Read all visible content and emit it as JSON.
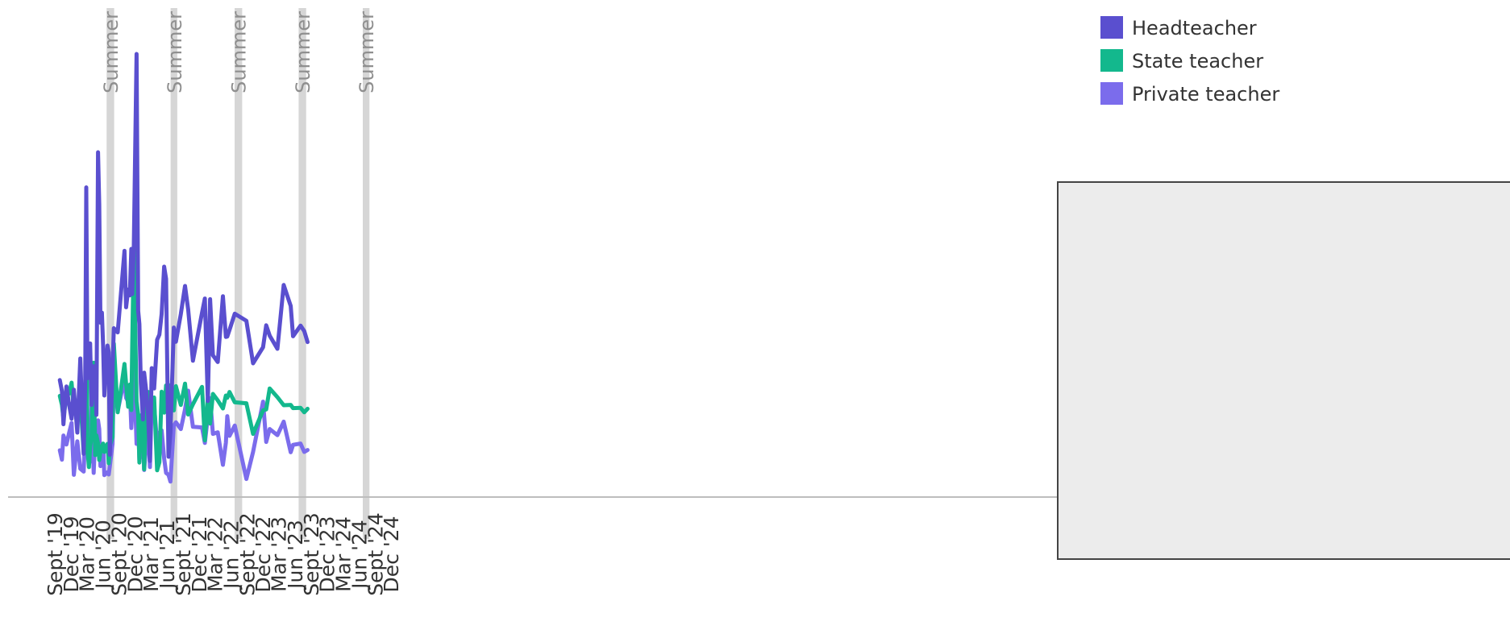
{
  "chart_data": {
    "type": "line",
    "x_start": "2019-09",
    "x_end": "2025-03",
    "xtick_labels": [
      "Sept '19",
      "Dec '19",
      "Mar '20",
      "Jun '20",
      "Sept '20",
      "Dec '20",
      "Mar '21",
      "Jun '21",
      "Sept '21",
      "Dec '21",
      "Mar '22",
      "Jun '22",
      "Sept '22",
      "Dec '22",
      "Mar '23",
      "Jun '23",
      "Sept '23",
      "Dec '23",
      "Mar '24",
      "Jun '24",
      "Sept '24",
      "Dec '24"
    ],
    "ylim": [
      0,
      100
    ],
    "summer_bands": [
      {
        "label": "Summer",
        "start": "2020-07-20",
        "end": "2020-09-01"
      },
      {
        "label": "Summer",
        "start": "2021-07-20",
        "end": "2021-08-27"
      },
      {
        "label": "Summer",
        "start": "2022-07-20",
        "end": "2022-09-01"
      },
      {
        "label": "Summer",
        "start": "2023-07-20",
        "end": "2023-09-01"
      },
      {
        "label": "Summer",
        "start": "2024-07-20",
        "end": "2024-08-27"
      }
    ],
    "legend": {
      "position": "top-right"
    },
    "series": [
      {
        "name": "Headteacher",
        "color": "#5a4fcf",
        "x": [
          "2019-10-27",
          "2019-11-08",
          "2019-11-17",
          "2019-12-04",
          "2019-12-19",
          "2020-01-02",
          "2020-01-15",
          "2020-02-04",
          "2020-02-21",
          "2020-03-11",
          "2020-03-20",
          "2020-03-26",
          "2020-04-02",
          "2020-04-10",
          "2020-04-17",
          "2020-04-25",
          "2020-05-07",
          "2020-05-16",
          "2020-05-23",
          "2020-06-01",
          "2020-06-08",
          "2020-06-15",
          "2020-06-23",
          "2020-06-30",
          "2020-07-07",
          "2020-07-25",
          "2020-08-01",
          "2020-08-07",
          "2020-08-23",
          "2020-08-30",
          "2020-09-21",
          "2020-10-30",
          "2020-11-08",
          "2020-11-20",
          "2020-11-29",
          "2020-12-08",
          "2020-12-13",
          "2020-12-22",
          "2021-01-07",
          "2021-01-16",
          "2021-01-23",
          "2021-01-31",
          "2021-02-12",
          "2021-02-19",
          "2021-03-02",
          "2021-03-14",
          "2021-03-24",
          "2021-04-03",
          "2021-04-17",
          "2021-05-04",
          "2021-05-17",
          "2021-05-30",
          "2021-06-13",
          "2021-06-24",
          "2021-07-08",
          "2021-07-19",
          "2021-08-07",
          "2021-08-19",
          "2021-09-16",
          "2021-10-10",
          "2021-10-28",
          "2021-11-24",
          "2022-01-15",
          "2022-01-31",
          "2022-02-17",
          "2022-03-02",
          "2022-03-18",
          "2022-04-15",
          "2022-05-14",
          "2022-05-31",
          "2022-06-08",
          "2022-06-21",
          "2022-07-21",
          "2022-09-25",
          "2022-11-02",
          "2022-12-29",
          "2023-01-16",
          "2023-02-05",
          "2023-03-21",
          "2023-04-26",
          "2023-06-05",
          "2023-06-18",
          "2023-07-31",
          "2023-08-21",
          "2023-09-09"
        ],
        "values": [
          36.3,
          32.9,
          22.6,
          34.3,
          28.7,
          24.3,
          33.3,
          20.0,
          43.0,
          13.4,
          35.4,
          96.1,
          36.9,
          38.5,
          47.7,
          28.6,
          40.6,
          36.7,
          25.5,
          107.0,
          90.7,
          54.1,
          57.2,
          47.1,
          31.5,
          47.0,
          44.9,
          13.1,
          39.9,
          52.4,
          51.1,
          76.4,
          58.9,
          64.4,
          62.6,
          77.0,
          63.0,
          78.0,
          137.5,
          57.8,
          53.7,
          35.3,
          24.1,
          38.6,
          33.3,
          25.1,
          11.2,
          40.0,
          33.7,
          48.8,
          50.4,
          56.8,
          71.5,
          67.7,
          12.5,
          20.2,
          52.6,
          48.2,
          56.8,
          65.5,
          58.2,
          42.3,
          57.2,
          61.6,
          29.8,
          61.4,
          44.0,
          41.9,
          62.3,
          49.7,
          49.8,
          51.9,
          56.9,
          54.7,
          41.5,
          46.5,
          53.3,
          50.1,
          46.0,
          65.8,
          59.3,
          49.9,
          53.2,
          51.5,
          48.1
        ]
      },
      {
        "name": "State teacher",
        "color": "#13b88d",
        "x": [
          "2019-10-27",
          "2019-11-08",
          "2019-11-17",
          "2019-12-04",
          "2019-12-19",
          "2020-01-02",
          "2020-01-15",
          "2020-02-04",
          "2020-02-21",
          "2020-03-11",
          "2020-03-20",
          "2020-03-26",
          "2020-04-02",
          "2020-04-10",
          "2020-04-17",
          "2020-04-25",
          "2020-05-07",
          "2020-05-16",
          "2020-05-23",
          "2020-06-01",
          "2020-06-08",
          "2020-06-15",
          "2020-06-23",
          "2020-06-30",
          "2020-07-07",
          "2020-07-25",
          "2020-08-01",
          "2020-08-07",
          "2020-08-23",
          "2020-08-30",
          "2020-09-21",
          "2020-10-30",
          "2020-11-08",
          "2020-11-20",
          "2020-11-29",
          "2020-12-08",
          "2020-12-13",
          "2020-12-22",
          "2021-01-07",
          "2021-01-16",
          "2021-01-23",
          "2021-01-31",
          "2021-02-12",
          "2021-02-19",
          "2021-03-02",
          "2021-03-14",
          "2021-03-24",
          "2021-04-03",
          "2021-04-17",
          "2021-05-04",
          "2021-05-17",
          "2021-05-30",
          "2021-06-13",
          "2021-06-24",
          "2021-07-08",
          "2021-07-19",
          "2021-08-07",
          "2021-08-19",
          "2021-09-16",
          "2021-10-10",
          "2021-10-28",
          "2021-11-24",
          "2022-01-15",
          "2022-01-31",
          "2022-02-17",
          "2022-03-02",
          "2022-03-18",
          "2022-04-15",
          "2022-05-14",
          "2022-05-31",
          "2022-06-08",
          "2022-06-21",
          "2022-07-21",
          "2022-09-25",
          "2022-11-02",
          "2022-12-29",
          "2023-01-16",
          "2023-02-05",
          "2023-03-21",
          "2023-04-26",
          "2023-06-05",
          "2023-06-18",
          "2023-07-31",
          "2023-08-21",
          "2023-09-09"
        ],
        "values": [
          31.4,
          28.6,
          24.4,
          31.6,
          32.1,
          35.5,
          26.7,
          27.7,
          31.2,
          13.6,
          28.9,
          62.2,
          14.8,
          9.3,
          15.5,
          18.6,
          41.7,
          13.0,
          19.1,
          16.7,
          11.5,
          14.1,
          15.8,
          16.6,
          14.0,
          16.5,
          10.5,
          15.9,
          18.6,
          47.6,
          26.3,
          41.3,
          35.2,
          28.0,
          34.9,
          27.0,
          47.0,
          76.9,
          29.6,
          25.7,
          10.7,
          25.0,
          26.0,
          8.6,
          29.4,
          32.6,
          28.5,
          29.7,
          30.9,
          8.3,
          10.8,
          32.7,
          26.2,
          34.6,
          34.8,
          31.1,
          26.9,
          34.4,
          28.6,
          35.2,
          25.6,
          28.8,
          34.2,
          17.6,
          30.8,
          22.8,
          32.0,
          30.0,
          27.5,
          31.5,
          30.8,
          32.6,
          29.4,
          29.1,
          19.6,
          26.9,
          27.2,
          33.7,
          31.0,
          28.5,
          28.6,
          27.6,
          27.7,
          26.3,
          27.4
        ]
      },
      {
        "name": "Private teacher",
        "color": "#7b6cec",
        "x": [
          "2019-10-27",
          "2019-11-08",
          "2019-11-17",
          "2019-12-04",
          "2019-12-19",
          "2020-01-02",
          "2020-01-15",
          "2020-02-04",
          "2020-02-21",
          "2020-03-11",
          "2020-03-20",
          "2020-03-26",
          "2020-04-02",
          "2020-04-10",
          "2020-04-17",
          "2020-04-25",
          "2020-05-07",
          "2020-05-16",
          "2020-05-23",
          "2020-06-01",
          "2020-06-08",
          "2020-06-15",
          "2020-06-23",
          "2020-06-30",
          "2020-07-07",
          "2020-07-25",
          "2020-08-01",
          "2020-08-07",
          "2020-08-23",
          "2020-08-30",
          "2020-09-21",
          "2020-10-30",
          "2020-11-08",
          "2020-11-20",
          "2020-11-29",
          "2020-12-08",
          "2020-12-13",
          "2020-12-22",
          "2021-01-07",
          "2021-01-16",
          "2021-01-23",
          "2021-01-31",
          "2021-02-12",
          "2021-02-19",
          "2021-03-02",
          "2021-03-14",
          "2021-03-24",
          "2021-04-03",
          "2021-04-17",
          "2021-05-04",
          "2021-05-17",
          "2021-05-30",
          "2021-06-13",
          "2021-06-24",
          "2021-07-08",
          "2021-07-19",
          "2021-08-07",
          "2021-08-19",
          "2021-09-16",
          "2021-10-10",
          "2021-10-28",
          "2021-11-24",
          "2022-01-15",
          "2022-01-31",
          "2022-02-17",
          "2022-03-02",
          "2022-03-18",
          "2022-04-15",
          "2022-05-14",
          "2022-05-31",
          "2022-06-08",
          "2022-06-21",
          "2022-07-21",
          "2022-09-25",
          "2022-11-02",
          "2022-12-29",
          "2023-01-16",
          "2023-02-05",
          "2023-03-21",
          "2023-04-26",
          "2023-06-05",
          "2023-06-18",
          "2023-07-31",
          "2023-08-21",
          "2023-09-09"
        ],
        "values": [
          14.5,
          11.6,
          19.1,
          16.3,
          19.9,
          23.0,
          6.9,
          17.3,
          8.8,
          7.9,
          20.3,
          28.4,
          22.5,
          15.7,
          11.0,
          29.9,
          7.5,
          19.3,
          21.5,
          23.8,
          21.1,
          9.6,
          13.7,
          16.5,
          6.8,
          7.7,
          7.0,
          9.5,
          16.5,
          37.6,
          26.7,
          36.8,
          30.8,
          29.6,
          33.2,
          21.4,
          26.0,
          41.6,
          16.5,
          22.2,
          11.5,
          14.6,
          17.1,
          8.4,
          16.3,
          21.0,
          9.3,
          29.5,
          28.2,
          16.7,
          20.0,
          20.7,
          12.0,
          7.5,
          6.9,
          4.8,
          22.2,
          23.2,
          21.1,
          27.2,
          33.0,
          21.8,
          21.6,
          16.8,
          25.0,
          30.7,
          19.6,
          20.1,
          10.0,
          16.9,
          25.1,
          19.0,
          22.2,
          5.6,
          14.0,
          29.6,
          17.1,
          21.1,
          19.2,
          23.4,
          13.9,
          16.2,
          16.6,
          14.0,
          14.6
        ]
      }
    ]
  }
}
